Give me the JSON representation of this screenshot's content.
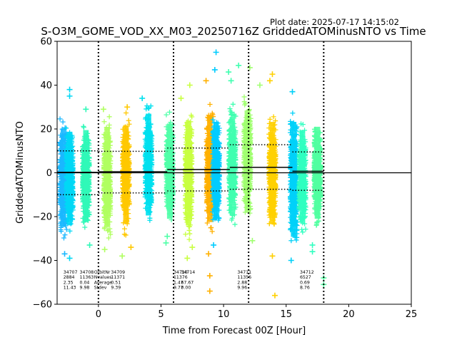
{
  "plot_date": "Plot date: 2025-07-17 14:15:02",
  "chart_data": {
    "type": "scatter",
    "title": "S-O3M_GOME_VOD_XX_M03_20250716Z GriddedATOMinusNTO vs Time",
    "xlabel": "Time from Forecast 00Z [Hour]",
    "ylabel": "GriddedATOMinusNTO",
    "xlim": [
      -3.3,
      25
    ],
    "ylim": [
      -60,
      60
    ],
    "xticks": [
      0,
      5,
      10,
      15,
      20,
      25
    ],
    "yticks": [
      -60,
      -40,
      -20,
      0,
      20,
      40,
      60
    ],
    "zero_line": 0,
    "window_boundaries": [
      0,
      6,
      12,
      18
    ],
    "windows": [
      {
        "x_start": -3.3,
        "x_end": 0,
        "average": 0.2,
        "stdev_upper": 10,
        "stdev_lower": -10
      },
      {
        "x_start": 0,
        "x_end": 5.5,
        "average": 0.5,
        "stdev_upper": 9.8,
        "stdev_lower": -9.2
      },
      {
        "x_start": 5.5,
        "x_end": 10.5,
        "average": 1.5,
        "stdev_upper": 11.3,
        "stdev_lower": -8.3
      },
      {
        "x_start": 10.5,
        "x_end": 15.5,
        "average": 2.5,
        "stdev_upper": 12.8,
        "stdev_lower": -7.5
      },
      {
        "x_start": 15.5,
        "x_end": 18,
        "average": 0.7,
        "stdev_upper": 9.5,
        "stdev_lower": -8.0
      }
    ],
    "clusters": [
      {
        "x": -2.8,
        "ymin": -33,
        "ymax": 27,
        "color": "#1ab8ff"
      },
      {
        "x": -2.3,
        "ymin": -32,
        "ymax": 25,
        "color": "#00d8f5"
      },
      {
        "x": -1.0,
        "ymin": -30,
        "ymax": 26,
        "color": "#30f8b8"
      },
      {
        "x": 0.7,
        "ymin": -33,
        "ymax": 28,
        "color": "#b0ff60"
      },
      {
        "x": 2.2,
        "ymin": -31,
        "ymax": 29,
        "color": "#ffc800"
      },
      {
        "x": 4.0,
        "ymin": -26,
        "ymax": 36,
        "color": "#00e0ee"
      },
      {
        "x": 5.7,
        "ymin": -28,
        "ymax": 30,
        "color": "#50ffa8"
      },
      {
        "x": 7.2,
        "ymin": -32,
        "ymax": 31,
        "color": "#c8ff40"
      },
      {
        "x": 8.9,
        "ymin": -30,
        "ymax": 35,
        "color": "#ffb000"
      },
      {
        "x": 9.4,
        "ymin": -28,
        "ymax": 31,
        "color": "#00ccff"
      },
      {
        "x": 10.7,
        "ymin": -26,
        "ymax": 34,
        "color": "#40ffb0"
      },
      {
        "x": 11.9,
        "ymin": -24,
        "ymax": 38,
        "color": "#a0ff70"
      },
      {
        "x": 13.9,
        "ymin": -31,
        "ymax": 31,
        "color": "#ffd000"
      },
      {
        "x": 15.6,
        "ymin": -39,
        "ymax": 31,
        "color": "#00d0f8"
      },
      {
        "x": 16.3,
        "ymin": -30,
        "ymax": 26,
        "color": "#30ffc0"
      },
      {
        "x": 17.5,
        "ymin": -28,
        "ymax": 28,
        "color": "#50ffa0"
      }
    ],
    "outliers": [
      {
        "x": -2.7,
        "y": -37,
        "color": "#1ab8ff"
      },
      {
        "x": -2.3,
        "y": 38,
        "color": "#00d8f5"
      },
      {
        "x": -2.3,
        "y": 35,
        "color": "#00d8f5"
      },
      {
        "x": -2.3,
        "y": -39,
        "color": "#00d8f5"
      },
      {
        "x": -1.0,
        "y": 29,
        "color": "#30f8b8"
      },
      {
        "x": -0.7,
        "y": -33,
        "color": "#30f8b8"
      },
      {
        "x": 0.5,
        "y": -35,
        "color": "#b0ff60"
      },
      {
        "x": 0.4,
        "y": 29,
        "color": "#b0ff60"
      },
      {
        "x": 1.9,
        "y": -38,
        "color": "#b0ff60"
      },
      {
        "x": 2.6,
        "y": -34,
        "color": "#ffc800"
      },
      {
        "x": 2.3,
        "y": 30,
        "color": "#ffc800"
      },
      {
        "x": 3.5,
        "y": 34,
        "color": "#00e0ee"
      },
      {
        "x": 5.4,
        "y": -32,
        "color": "#50ffa8"
      },
      {
        "x": 5.5,
        "y": -29,
        "color": "#50ffa8"
      },
      {
        "x": 6.6,
        "y": 34,
        "color": "#c8ff40"
      },
      {
        "x": 7.3,
        "y": 40,
        "color": "#c8ff40"
      },
      {
        "x": 7.5,
        "y": -34,
        "color": "#c8ff40"
      },
      {
        "x": 7.1,
        "y": -39,
        "color": "#c8ff40"
      },
      {
        "x": 8.6,
        "y": 42,
        "color": "#ffb000"
      },
      {
        "x": 8.8,
        "y": -37,
        "color": "#ffb000"
      },
      {
        "x": 8.9,
        "y": -47,
        "color": "#ffb000"
      },
      {
        "x": 8.9,
        "y": -54,
        "color": "#ffb000"
      },
      {
        "x": 9.3,
        "y": 47,
        "color": "#00ccff"
      },
      {
        "x": 9.4,
        "y": 55,
        "color": "#00ccff"
      },
      {
        "x": 9.2,
        "y": -33,
        "color": "#00ccff"
      },
      {
        "x": 10.4,
        "y": 46,
        "color": "#40ffb0"
      },
      {
        "x": 10.6,
        "y": 42,
        "color": "#40ffb0"
      },
      {
        "x": 11.2,
        "y": 49,
        "color": "#40ffb0"
      },
      {
        "x": 12.1,
        "y": 48,
        "color": "#a0ff70"
      },
      {
        "x": 12.3,
        "y": -31,
        "color": "#a0ff70"
      },
      {
        "x": 12.9,
        "y": 40,
        "color": "#a0ff70"
      },
      {
        "x": 13.9,
        "y": 45,
        "color": "#ffd000"
      },
      {
        "x": 13.9,
        "y": -38,
        "color": "#ffd000"
      },
      {
        "x": 14.1,
        "y": -56,
        "color": "#ffd000"
      },
      {
        "x": 13.7,
        "y": 42,
        "color": "#ffd000"
      },
      {
        "x": 15.5,
        "y": 37,
        "color": "#00d0f8"
      },
      {
        "x": 15.4,
        "y": -40,
        "color": "#00d0f8"
      },
      {
        "x": 17.1,
        "y": -33,
        "color": "#30ffc0"
      },
      {
        "x": 17.1,
        "y": -36,
        "color": "#30ffc0"
      },
      {
        "x": 18.0,
        "y": -48,
        "color": "#50ffa0"
      },
      {
        "x": 18.0,
        "y": -51,
        "color": "#50ffa0"
      }
    ],
    "stat_rows": [
      "OrbitNr",
      "Nvalues",
      "Average",
      "Stdev"
    ],
    "stat_columns": [
      {
        "x": -2.8,
        "values": [
          "34707",
          "2884",
          "2.35",
          "11.43"
        ]
      },
      {
        "x": -1.5,
        "values": [
          "34708",
          "11363",
          "0.04",
          "9.98"
        ]
      },
      {
        "x": 1.0,
        "values": [
          "34709",
          "11371",
          "0.51",
          "9.39"
        ]
      },
      {
        "x": 6.0,
        "values": [
          "34710",
          "11376",
          "1.47",
          "9.77"
        ]
      },
      {
        "x": 6.6,
        "values": [
          "34714",
          "",
          "67.67",
          "0.00"
        ]
      },
      {
        "x": 11.1,
        "values": [
          "34711",
          "11356",
          "2.88",
          "9.96"
        ]
      },
      {
        "x": 16.1,
        "values": [
          "34712",
          "6527",
          "0.69",
          "8.76"
        ]
      }
    ]
  }
}
